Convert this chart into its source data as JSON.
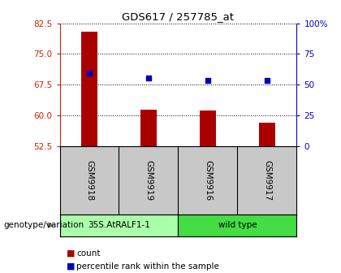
{
  "title": "GDS617 / 257785_at",
  "samples": [
    "GSM9918",
    "GSM9919",
    "GSM9916",
    "GSM9917"
  ],
  "bar_values": [
    80.5,
    61.3,
    61.1,
    58.2
  ],
  "scatter_values": [
    70.3,
    69.2,
    68.6,
    68.6
  ],
  "y_min": 52.5,
  "y_max": 82.5,
  "y_ticks_left": [
    52.5,
    60.0,
    67.5,
    75.0,
    82.5
  ],
  "y_ticks_right": [
    0,
    25,
    50,
    75,
    100
  ],
  "groups": [
    {
      "label": "35S.AtRALF1-1",
      "color": "#90ee90"
    },
    {
      "label": "wild type",
      "color": "#44dd44"
    }
  ],
  "bar_color": "#aa0000",
  "scatter_color": "#0000bb",
  "bar_bottom": 52.5,
  "label_genotype": "genotype/variation",
  "legend_count": "count",
  "legend_percentile": "percentile rank within the sample",
  "left_label_color": "#cc2200",
  "right_label_color": "#0000cc",
  "sample_bg": "#c8c8c8",
  "group1_color": "#aaffaa",
  "group2_color": "#44dd44"
}
